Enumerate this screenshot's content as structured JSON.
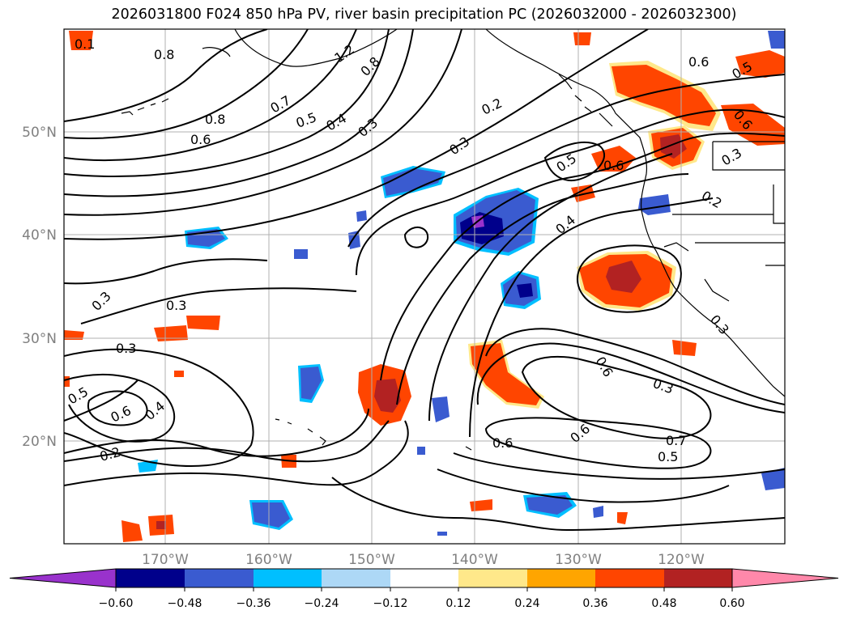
{
  "title": "2026031800 F024 850 hPa PV, river basin precipitation PC (2026032000 - 2026032300)",
  "lat_labels": [
    "50°N",
    "40°N",
    "30°N",
    "20°N"
  ],
  "lon_labels": [
    "170°W",
    "160°W",
    "150°W",
    "140°W",
    "130°W",
    "120°W"
  ],
  "colorbar": {
    "ticks": [
      "−0.60",
      "−0.48",
      "−0.36",
      "−0.24",
      "−0.12",
      "0.12",
      "0.24",
      "0.36",
      "0.48",
      "0.60"
    ],
    "colors": [
      "#9932cc",
      "#00008b",
      "#3a5bd0",
      "#00bfff",
      "#add8f6",
      "#ffffff",
      "#ffe88a",
      "#ffa500",
      "#ff4500",
      "#b22222",
      "#ff88aa"
    ]
  },
  "contour_labels": [
    "0.1",
    "0.8",
    "1.2",
    "0.8",
    "0.7",
    "0.8",
    "0.5",
    "0.4",
    "0.6",
    "0.3",
    "0.2",
    "0.3",
    "0.5",
    "0.6",
    "0.4",
    "0.2",
    "0.3",
    "0.3",
    "0.3",
    "0.5",
    "0.6",
    "0.4",
    "0.2",
    "0.6",
    "0.6",
    "0.6",
    "0.3",
    "0.7",
    "0.5",
    "0.6",
    "0.5",
    "0.3",
    "0.3"
  ]
}
